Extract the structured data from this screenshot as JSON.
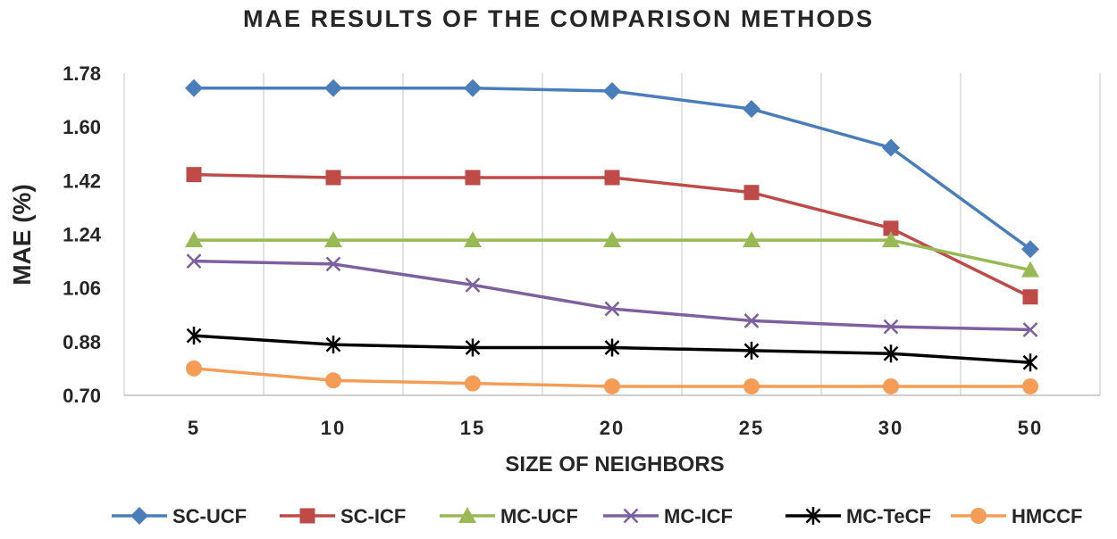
{
  "chart_data": {
    "type": "line",
    "title": "MAE RESULTS OF THE COMPARISON METHODS",
    "xlabel": "SIZE OF NEIGHBORS",
    "ylabel": "MAE (%)",
    "categories": [
      "5",
      "10",
      "15",
      "20",
      "25",
      "30",
      "50"
    ],
    "ylim": [
      0.7,
      1.78
    ],
    "yticks": [
      "0.70",
      "0.88",
      "1.06",
      "1.24",
      "1.42",
      "1.60",
      "1.78"
    ],
    "grid": "vertical",
    "legend": "bottom",
    "series": [
      {
        "name": "SC-UCF",
        "color": "#4a7ebb",
        "marker": "diamond",
        "values": [
          1.73,
          1.73,
          1.73,
          1.72,
          1.66,
          1.53,
          1.19
        ]
      },
      {
        "name": "SC-ICF",
        "color": "#be4b48",
        "marker": "square",
        "values": [
          1.44,
          1.43,
          1.43,
          1.43,
          1.38,
          1.26,
          1.03
        ]
      },
      {
        "name": "MC-UCF",
        "color": "#98b954",
        "marker": "triangle",
        "values": [
          1.22,
          1.22,
          1.22,
          1.22,
          1.22,
          1.22,
          1.12
        ]
      },
      {
        "name": "MC-ICF",
        "color": "#7d60a0",
        "marker": "x",
        "values": [
          1.15,
          1.14,
          1.07,
          0.99,
          0.95,
          0.93,
          0.92
        ]
      },
      {
        "name": "MC-TeCF",
        "color": "#000000",
        "marker": "star",
        "values": [
          0.9,
          0.87,
          0.86,
          0.86,
          0.85,
          0.84,
          0.81
        ]
      },
      {
        "name": "HMCCF",
        "color": "#f59d56",
        "marker": "circle",
        "values": [
          0.79,
          0.75,
          0.74,
          0.73,
          0.73,
          0.73,
          0.73
        ]
      }
    ]
  }
}
